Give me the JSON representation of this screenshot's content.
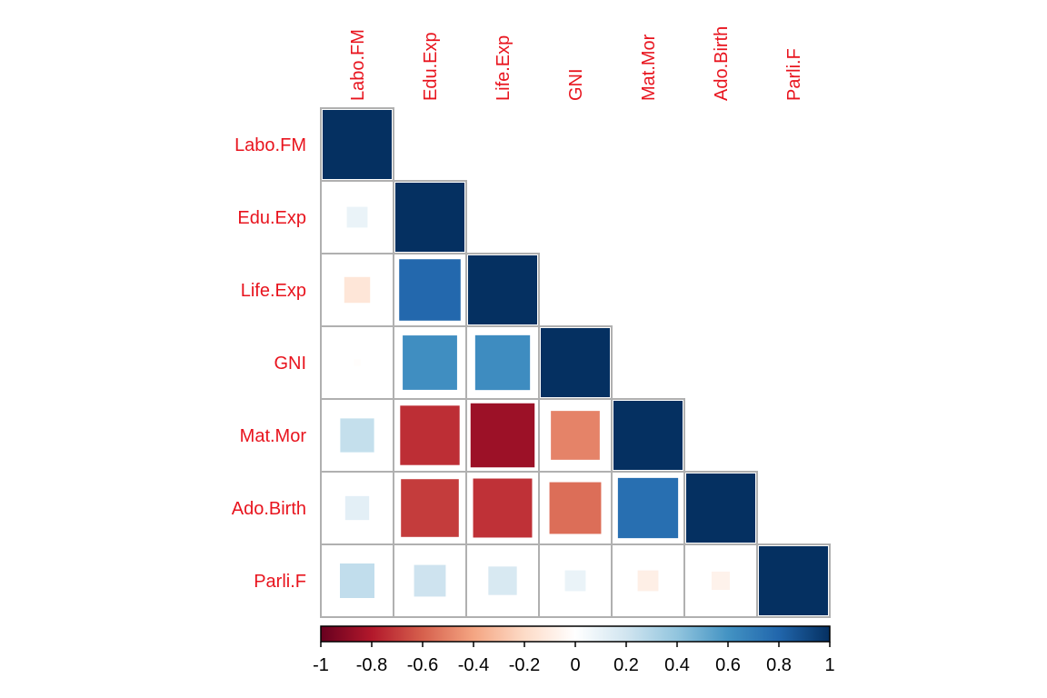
{
  "chart_data": {
    "type": "heatmap",
    "variables": [
      "Labo.FM",
      "Edu.Exp",
      "Life.Exp",
      "GNI",
      "Mat.Mor",
      "Ado.Birth",
      "Parli.F"
    ],
    "matrix_lower": [
      [
        1.0
      ],
      [
        0.09,
        1.0
      ],
      [
        -0.14,
        0.79,
        1.0
      ],
      [
        -0.01,
        0.62,
        0.63,
        1.0
      ],
      [
        0.24,
        -0.74,
        -0.86,
        -0.5,
        1.0
      ],
      [
        0.12,
        -0.7,
        -0.73,
        -0.56,
        0.76,
        1.0
      ],
      [
        0.25,
        0.21,
        0.17,
        0.09,
        -0.09,
        -0.07,
        1.0
      ]
    ],
    "method": "square",
    "shape": "lower",
    "colorbar": {
      "ticks": [
        "-1",
        "-0.8",
        "-0.6",
        "-0.4",
        "-0.2",
        "0",
        "0.2",
        "0.4",
        "0.6",
        "0.8",
        "1"
      ],
      "range": [
        -1,
        1
      ],
      "placement": "bottom"
    },
    "colors": {
      "label": "#e8141e",
      "grid": "#b0b0b0",
      "palette": [
        "#67001f",
        "#b2182b",
        "#d6604d",
        "#f4a582",
        "#fddbc7",
        "#ffffff",
        "#d1e5f0",
        "#92c5de",
        "#4393c3",
        "#2166ac",
        "#053061"
      ]
    }
  }
}
